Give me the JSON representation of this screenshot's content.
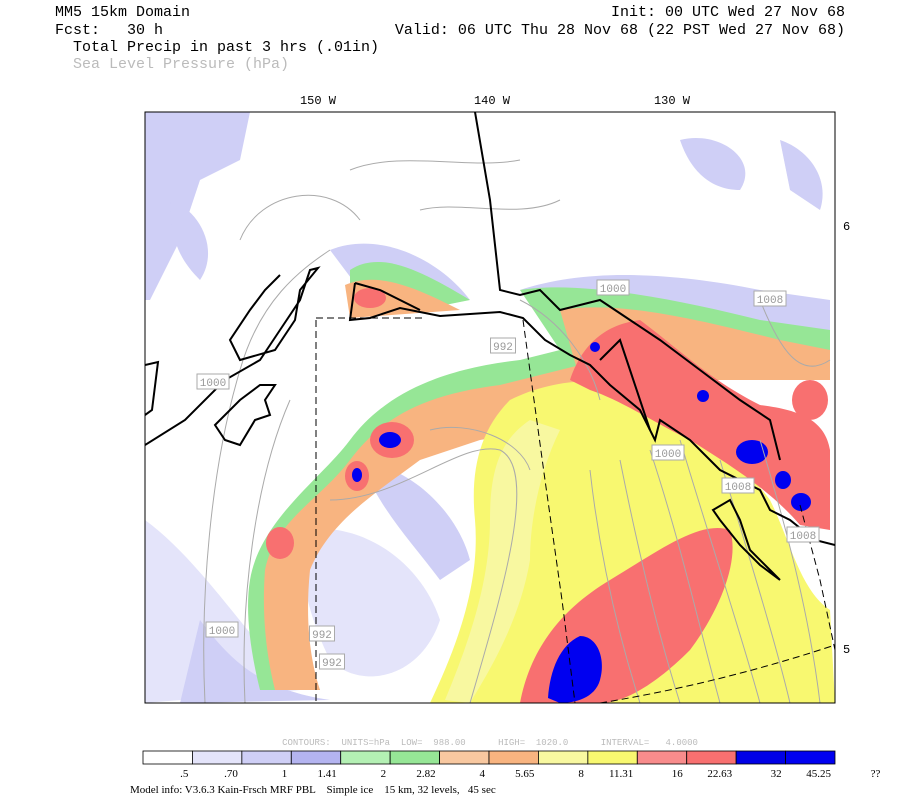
{
  "header": {
    "domain": "MM5 15km Domain",
    "init": "Init: 00 UTC Wed 27 Nov 68",
    "forecast": "Fcst:   30 h",
    "valid": "Valid: 06 UTC Thu 28 Nov 68 (22 PST Wed 27 Nov 68)",
    "field_1": "Total Precip in past 3 hrs (.01in)",
    "field_2": "Sea Level Pressure (hPa)"
  },
  "map": {
    "longitude_labels": [
      "150 W",
      "140 W",
      "130 W"
    ],
    "latitude_labels": [
      "6",
      "5"
    ],
    "contour_labels": [
      "1000",
      "992",
      "1000",
      "1008",
      "1000",
      "1008",
      "1008",
      "1000",
      "992",
      "992"
    ]
  },
  "legend": {
    "contour_info": "CONTOURS:  UNITS=hPa  LOW=  988.00      HIGH=  1020.0      INTERVAL=   4.0000",
    "colors": [
      "#ffffff",
      "#e4e4fa",
      "#cfcff6",
      "#b4b4f0",
      "#b4f0b4",
      "#96e696",
      "#f8c8a0",
      "#f8b480",
      "#f8f8a0",
      "#f8f870",
      "#f88c8c",
      "#f87070",
      "#0000e6",
      "#0000f0"
    ],
    "labels": [
      ".5",
      ".70",
      "1",
      "1.41",
      "2",
      "2.82",
      "4",
      "5.65",
      "8",
      "11.31",
      "16",
      "22.63",
      "32",
      "45.25",
      "??"
    ]
  },
  "footer": "Model info: V3.6.3 Kain-Frsch MRF PBL    Simple ice    15 km, 32 levels,   45 sec"
}
